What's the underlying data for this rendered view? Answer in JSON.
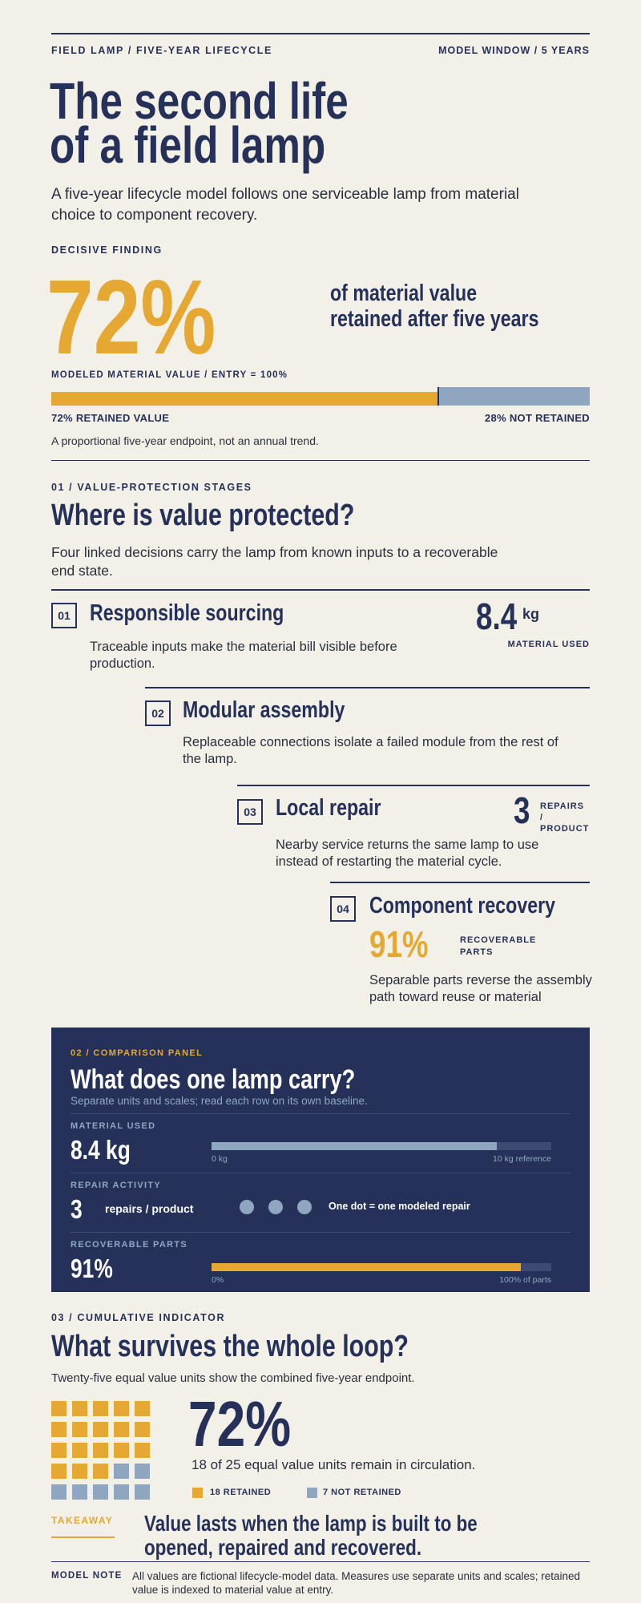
{
  "header": {
    "left": "FIELD LAMP / FIVE-YEAR LIFECYCLE",
    "right": "MODEL WINDOW / 5 YEARS"
  },
  "title": [
    "The second life",
    "of a field lamp"
  ],
  "subtitle": "A five-year lifecycle model follows one serviceable lamp from material choice to component recovery.",
  "finding": {
    "kicker": "DECISIVE FINDING",
    "value": 72,
    "value_label": "72%",
    "statement": "of material value retained after five years",
    "scale_label": "MODELED MATERIAL VALUE / ENTRY = 100%",
    "retained_label": "72% RETAINED VALUE",
    "not_retained": 28,
    "not_retained_label": "28% NOT RETAINED",
    "note": "A proportional five-year endpoint, not an annual trend."
  },
  "stages": {
    "kicker": "01 / VALUE-PROTECTION STAGES",
    "title": "Where is value protected?",
    "description": "Four linked decisions carry the lamp from known inputs to a recoverable end state.",
    "items": [
      {
        "number": "01",
        "title": "Responsible sourcing",
        "description": "Traceable inputs make the material bill visible before production.",
        "metric": {
          "value": "8.4",
          "unit": "kg",
          "label": "MATERIAL USED"
        }
      },
      {
        "number": "02",
        "title": "Modular assembly",
        "description": "Replaceable connections isolate a failed module from the rest of the lamp."
      },
      {
        "number": "03",
        "title": "Local repair",
        "description": "Nearby service returns the same lamp to use instead of restarting the material cycle.",
        "metric": {
          "value": "3",
          "label": "REPAIRS / PRODUCT"
        }
      },
      {
        "number": "04",
        "title": "Component recovery",
        "description": "Separable parts reverse the assembly path toward reuse or material",
        "metric": {
          "value": "91%",
          "label": "RECOVERABLE PARTS"
        }
      }
    ]
  },
  "comparison": {
    "kicker": "02 / COMPARISON PANEL",
    "title": "What does one lamp carry?",
    "subtitle": "Separate units and scales; read each row on its own baseline.",
    "rows": [
      {
        "label": "MATERIAL USED",
        "value": 8.4,
        "value_label": "8.4 kg",
        "min": 0,
        "min_label": "0 kg",
        "max": 10,
        "max_label": "10 kg reference"
      },
      {
        "label": "REPAIR ACTIVITY",
        "value": 3,
        "unit": "repairs / product",
        "note": "One dot = one modeled repair"
      },
      {
        "label": "RECOVERABLE PARTS",
        "value": 91,
        "value_label": "91%",
        "min": 0,
        "min_label": "0%",
        "max": 100,
        "max_label": "100% of parts"
      }
    ]
  },
  "cumulative": {
    "kicker": "03 / CUMULATIVE INDICATOR",
    "title": "What survives the whole loop?",
    "subtitle": "Twenty-five equal value units show the combined five-year endpoint.",
    "value_label": "72%",
    "caption": "18 of 25 equal value units remain in circulation.",
    "retained": {
      "value": 18,
      "label": "18 RETAINED"
    },
    "not_retained": {
      "value": 7,
      "label": "7 NOT RETAINED"
    }
  },
  "takeaway": {
    "label": "TAKEAWAY",
    "text": "Value lasts when the lamp is built to be opened, repaired and recovered."
  },
  "model_note": {
    "label": "MODEL NOTE",
    "text": "All values are fictional lifecycle-model data. Measures use separate units and scales; retained value is indexed to material value at entry."
  }
}
